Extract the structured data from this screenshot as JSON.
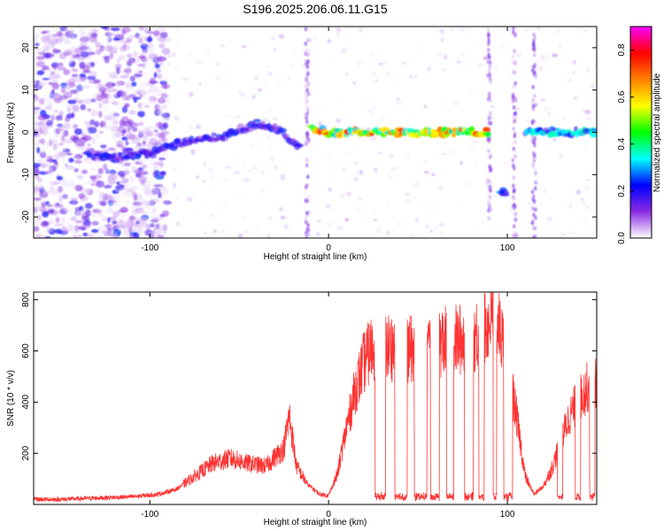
{
  "page": {
    "title": "S196.2025.206.06.11.G15"
  },
  "chart_data": [
    {
      "type": "heatmap",
      "title": "S196.2025.206.06.11.G15",
      "xlabel": "Height of straight line (km)",
      "ylabel": "Frequency (Hz)",
      "xlim": [
        -165,
        150
      ],
      "ylim": [
        -25,
        25
      ],
      "xticks": [
        -100,
        0,
        100
      ],
      "yticks": [
        -20,
        -10,
        0,
        10,
        20
      ],
      "colorbar": {
        "label": "Normalized spectral amplitude",
        "range": [
          0,
          0.9
        ],
        "ticks": [
          0,
          0.2,
          0.4,
          0.6,
          0.8
        ],
        "colormap": "rainbow",
        "colors": [
          "#ffffff",
          "#8a2be2",
          "#0000ff",
          "#00ffff",
          "#00ff00",
          "#ffff00",
          "#ff7f00",
          "#ff0000",
          "#ff00ff"
        ]
      },
      "ridges": [
        {
          "x": [
            -135,
            -120,
            -100,
            -80,
            -60,
            -40,
            -30,
            -20,
            -15
          ],
          "y": [
            -5,
            -6,
            -5,
            -2,
            -1,
            2,
            1,
            -2,
            -4
          ],
          "amp": 0.25
        },
        {
          "x": [
            -10,
            0,
            20,
            40,
            60,
            80,
            90
          ],
          "y": [
            1,
            0,
            0,
            0,
            0,
            0,
            0
          ],
          "amp": 0.75
        },
        {
          "x": [
            96,
            100
          ],
          "y": [
            -14,
            -14
          ],
          "amp": 0.3
        },
        {
          "x": [
            110,
            120,
            130,
            140,
            150
          ],
          "y": [
            0,
            0,
            0,
            0,
            0
          ],
          "amp": 0.4
        }
      ]
    },
    {
      "type": "line",
      "xlabel": "Height of straight line (km)",
      "ylabel": "SNR (10 * v/v)",
      "xlim": [
        -165,
        150
      ],
      "ylim": [
        0,
        830
      ],
      "xticks": [
        -100,
        0,
        100
      ],
      "yticks": [
        200,
        400,
        600,
        800
      ],
      "series": [
        {
          "color": "#ff3333",
          "x": [
            -165,
            -150,
            -130,
            -110,
            -95,
            -85,
            -75,
            -65,
            -55,
            -45,
            -35,
            -25,
            -22,
            -18,
            -12,
            -5,
            0,
            5,
            10,
            15,
            20,
            25,
            30,
            40,
            50,
            60,
            70,
            80,
            90,
            93,
            95,
            100,
            105,
            110,
            115,
            120,
            125,
            130,
            135,
            140,
            145,
            150
          ],
          "y": [
            20,
            20,
            25,
            30,
            40,
            60,
            110,
            160,
            180,
            160,
            150,
            220,
            350,
            150,
            80,
            40,
            35,
            120,
            300,
            450,
            560,
            620,
            620,
            610,
            600,
            630,
            640,
            650,
            710,
            790,
            700,
            560,
            350,
            110,
            40,
            70,
            140,
            250,
            350,
            410,
            460,
            480
          ]
        }
      ],
      "dropouts": [
        [
          26,
          32
        ],
        [
          37,
          44
        ],
        [
          48,
          55
        ],
        [
          57,
          62
        ],
        [
          66,
          70
        ],
        [
          76,
          81
        ],
        [
          84,
          87
        ],
        [
          92,
          94
        ],
        [
          98,
          103
        ],
        [
          128,
          131
        ],
        [
          138,
          141
        ],
        [
          146,
          149
        ]
      ]
    }
  ]
}
